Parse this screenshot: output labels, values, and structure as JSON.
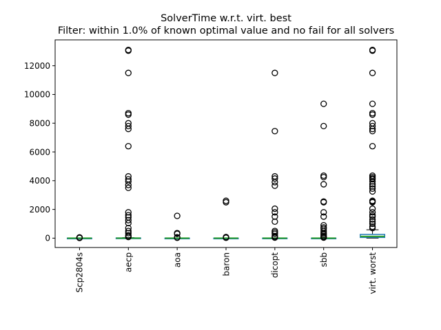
{
  "chart_data": {
    "type": "box",
    "title": "SolverTime w.r.t. virt. best",
    "subtitle": "Filter: within 1.0% of known optimal value and no fail for all solvers",
    "xlabel": "",
    "ylabel": "",
    "ylim": [
      -650,
      13800
    ],
    "yticks": [
      0,
      2000,
      4000,
      6000,
      8000,
      10000,
      12000
    ],
    "ytick_labels": [
      "0",
      "2000",
      "4000",
      "6000",
      "8000",
      "10000",
      "12000"
    ],
    "categories": [
      "Scp2804s",
      "aecp",
      "aoa",
      "baron",
      "dicopt",
      "sbb",
      "virt. worst"
    ],
    "grid": false,
    "colors": {
      "box": "#1f77b4",
      "median": "#2ca02c",
      "whisker": "#000000",
      "flier": "#000000"
    },
    "boxes": [
      {
        "name": "Scp2804s",
        "q1": 0,
        "median": 0,
        "q3": 5,
        "whisker_low": 0,
        "whisker_high": 10,
        "outliers": [
          15,
          25,
          40,
          55
        ]
      },
      {
        "name": "aecp",
        "q1": 0,
        "median": 2,
        "q3": 15,
        "whisker_low": 0,
        "whisker_high": 35,
        "outliers": [
          13100,
          13050,
          11500,
          8700,
          8600,
          8000,
          7800,
          7600,
          6400,
          4300,
          4100,
          3950,
          3700,
          3500,
          1800,
          1600,
          1450,
          1250,
          1050,
          700,
          500,
          350,
          200,
          120,
          80
        ]
      },
      {
        "name": "aoa",
        "q1": 0,
        "median": 0,
        "q3": 5,
        "whisker_low": 0,
        "whisker_high": 12,
        "outliers": [
          1550,
          350,
          300,
          60,
          30
        ]
      },
      {
        "name": "baron",
        "q1": 0,
        "median": 0,
        "q3": 4,
        "whisker_low": 0,
        "whisker_high": 10,
        "outliers": [
          2600,
          2500,
          80,
          50,
          25
        ]
      },
      {
        "name": "dicopt",
        "q1": 0,
        "median": 1,
        "q3": 8,
        "whisker_low": 0,
        "whisker_high": 20,
        "outliers": [
          11500,
          7450,
          4300,
          4150,
          3900,
          3650,
          2050,
          1800,
          1500,
          1150,
          500,
          400,
          300,
          150,
          80,
          40
        ]
      },
      {
        "name": "sbb",
        "q1": 0,
        "median": 0,
        "q3": 6,
        "whisker_low": 0,
        "whisker_high": 15,
        "outliers": [
          9350,
          7800,
          4350,
          4250,
          3750,
          2550,
          2500,
          1800,
          1500,
          900,
          750,
          650,
          500,
          350,
          250,
          150,
          80,
          40
        ]
      },
      {
        "name": "virt. worst",
        "q1": 50,
        "median": 120,
        "q3": 260,
        "whisker_low": 0,
        "whisker_high": 580,
        "outliers": [
          13100,
          13050,
          11500,
          9350,
          8700,
          8600,
          8000,
          7800,
          7600,
          7450,
          6400,
          4350,
          4250,
          4150,
          4100,
          3950,
          3750,
          3600,
          3450,
          3250,
          2600,
          2550,
          2500,
          2050,
          1800,
          1600,
          1500,
          1300,
          1150,
          1000,
          800,
          700
        ]
      }
    ]
  }
}
